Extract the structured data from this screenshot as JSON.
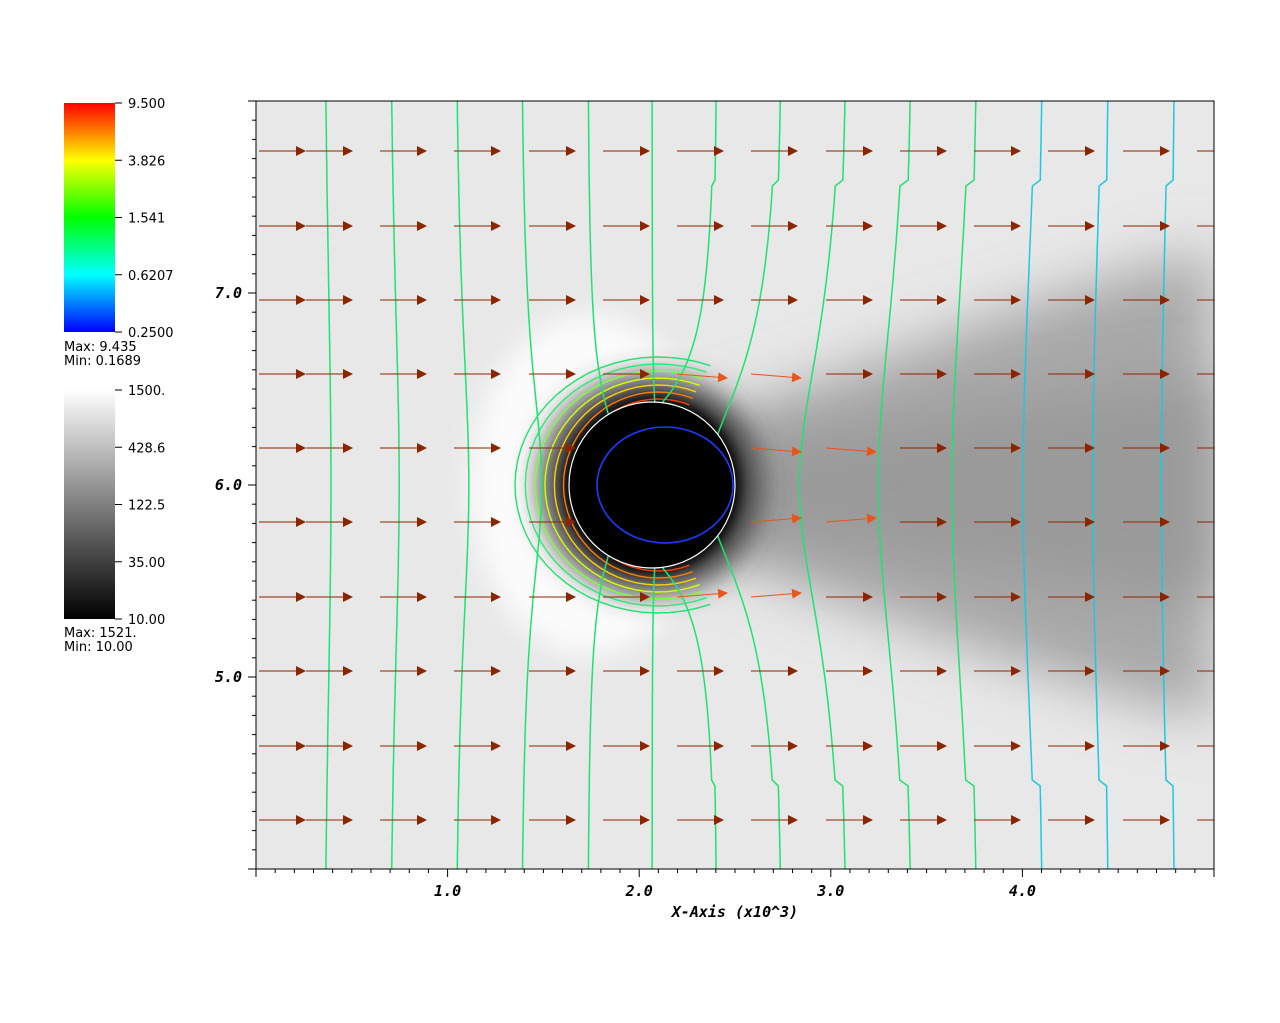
{
  "chart_data": {
    "type": "contour",
    "xlabel": "X-Axis (x10^3)",
    "x_ticks": [
      "1.0",
      "2.0",
      "3.0",
      "4.0"
    ],
    "x_tick_values": [
      1.0,
      2.0,
      3.0,
      4.0
    ],
    "y_ticks": [
      "5.0",
      "6.0",
      "7.0"
    ],
    "y_tick_values": [
      5.0,
      6.0,
      7.0
    ],
    "xlim": [
      0.0,
      5.0
    ],
    "ylim": [
      4.0,
      8.0
    ],
    "obstacle": {
      "cx": 2.1,
      "cy": 6.0,
      "r": 0.42
    },
    "contour_legend": {
      "labels": [
        "9.500",
        "3.826",
        "1.541",
        "0.6207",
        "0.2500"
      ],
      "max_text": "Max:  9.435",
      "min_text": "Min:  0.1689",
      "colors": [
        "#ff0000",
        "#ffff00",
        "#00ff00",
        "#00ffff",
        "#0000ff"
      ]
    },
    "pseudocolor_legend": {
      "labels": [
        "1500.",
        "428.6",
        "122.5",
        "35.00",
        "10.00"
      ],
      "max_text": "Max:  1521.",
      "min_text": "Min:  10.00",
      "colors": [
        "#ffffff",
        "#000000"
      ]
    },
    "vector_color": "#8b2500",
    "vector_highlight_color": "#e8561a",
    "streamline_color": "#1ee36e"
  }
}
